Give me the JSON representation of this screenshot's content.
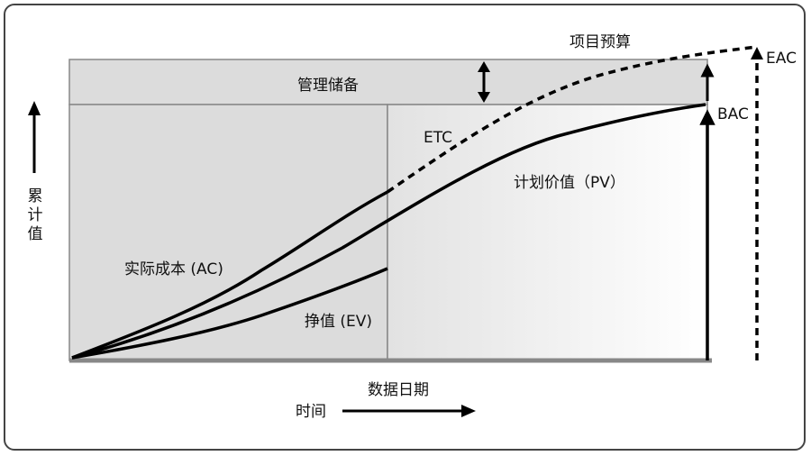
{
  "diagram": {
    "title": "项目预算",
    "management_reserve": "管理储备",
    "etc": "ETC",
    "planned_value": "计划价值（PV）",
    "actual_cost": "实际成本 (AC)",
    "earned_value": "挣值 (EV)",
    "bac": "BAC",
    "eac": "EAC",
    "y_axis": "累计值",
    "x_axis_time": "时间",
    "x_axis_date": "数据日期"
  }
}
